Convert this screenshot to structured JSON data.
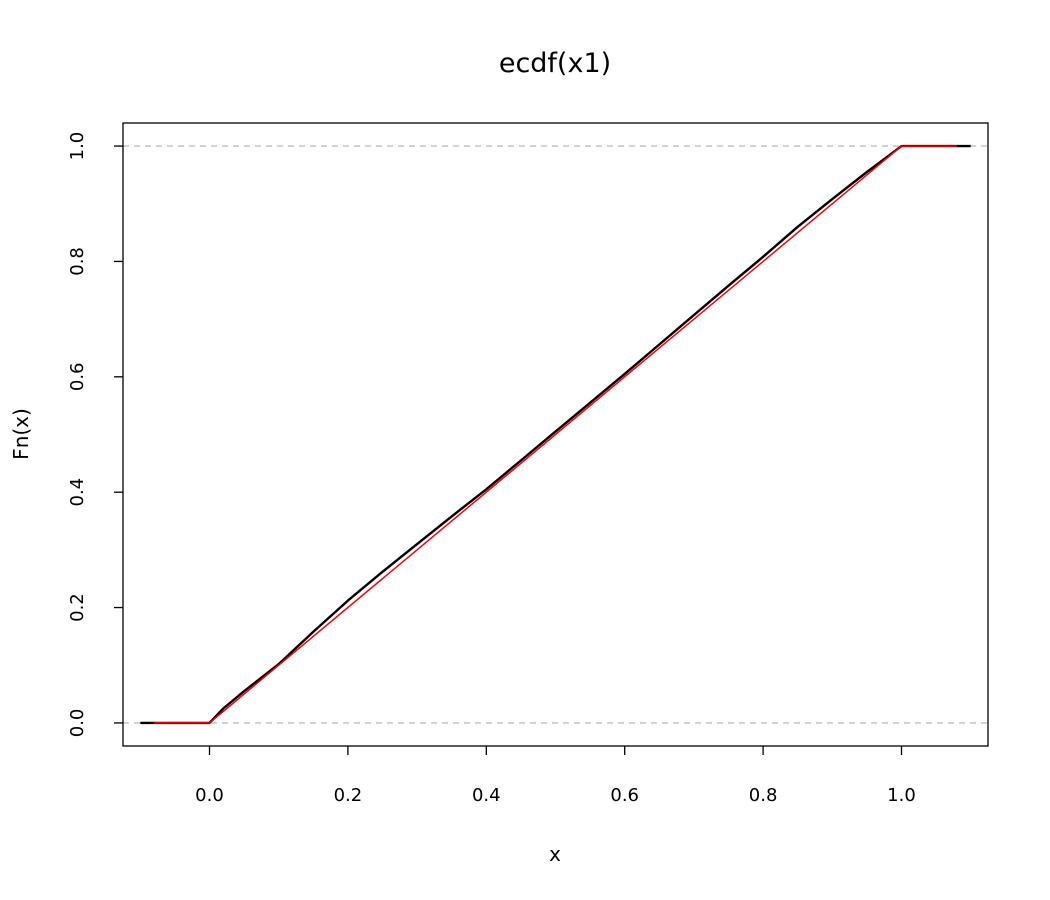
{
  "chart_data": {
    "type": "line",
    "title": "ecdf(x1)",
    "xlabel": "x",
    "ylabel": "Fn(x)",
    "xlim": [
      -0.125,
      1.125
    ],
    "ylim": [
      -0.04,
      1.04
    ],
    "x_ticks": [
      "0.0",
      "0.2",
      "0.4",
      "0.6",
      "0.8",
      "1.0"
    ],
    "x_tick_values": [
      0.0,
      0.2,
      0.4,
      0.6,
      0.8,
      1.0
    ],
    "y_ticks": [
      "0.0",
      "0.2",
      "0.4",
      "0.6",
      "0.8",
      "1.0"
    ],
    "y_tick_values": [
      0.0,
      0.2,
      0.4,
      0.6,
      0.8,
      1.0
    ],
    "grid": false,
    "reference_lines": [
      {
        "y": 0,
        "style": "dashed",
        "color": "#bebebe"
      },
      {
        "y": 1,
        "style": "dashed",
        "color": "#bebebe"
      }
    ],
    "series": [
      {
        "color": "#000000",
        "x": [
          -0.1,
          0.0,
          0.02,
          0.05,
          0.1,
          0.15,
          0.2,
          0.25,
          0.3,
          0.35,
          0.4,
          0.45,
          0.5,
          0.55,
          0.6,
          0.65,
          0.7,
          0.75,
          0.8,
          0.85,
          0.9,
          0.95,
          1.0,
          1.1
        ],
        "y": [
          0.0,
          0.0,
          0.025,
          0.055,
          0.102,
          0.158,
          0.212,
          0.262,
          0.31,
          0.358,
          0.405,
          0.455,
          0.505,
          0.555,
          0.605,
          0.656,
          0.707,
          0.758,
          0.808,
          0.86,
          0.908,
          0.955,
          1.0,
          1.0
        ]
      },
      {
        "color": "#ff0000",
        "x": [
          -0.08,
          0.0,
          1.0,
          1.08
        ],
        "y": [
          0.0,
          0.0,
          1.0,
          1.0
        ]
      }
    ]
  }
}
